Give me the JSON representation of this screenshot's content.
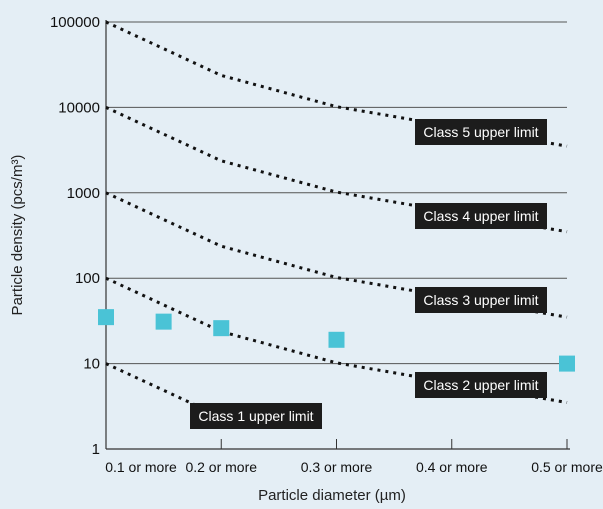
{
  "chart_data": {
    "type": "scatter",
    "xlabel": "Particle diameter (µm)",
    "ylabel": "Particle density (pcs/m³)",
    "y_scale": "log",
    "ylim": [
      1,
      100000
    ],
    "xlim": [
      0.1,
      0.5
    ],
    "x_tick_labels": [
      "0.1 or more",
      "0.2 or more",
      "0.3 or more",
      "0.4 or more",
      "0.5 or more"
    ],
    "y_tick_labels": [
      "1",
      "10",
      "100",
      "1000",
      "10000",
      "100000"
    ],
    "grid": "horizontal",
    "colors": {
      "background": "#e4eef5",
      "limit_line": "#111111",
      "label_box": "#1c1c1c",
      "label_text": "#ffffff",
      "marker": "#4ac3d6"
    },
    "limit_series": [
      {
        "label": "Class 1 upper limit",
        "x": [
          0.1,
          0.2
        ],
        "y": [
          10,
          2.37
        ]
      },
      {
        "label": "Class 2 upper limit",
        "x": [
          0.1,
          0.2,
          0.3,
          0.5
        ],
        "y": [
          100,
          23.7,
          10.2,
          3.5
        ]
      },
      {
        "label": "Class 3 upper limit",
        "x": [
          0.1,
          0.2,
          0.3,
          0.5
        ],
        "y": [
          1000,
          237,
          102,
          35
        ]
      },
      {
        "label": "Class 4 upper limit",
        "x": [
          0.1,
          0.2,
          0.3,
          0.5
        ],
        "y": [
          10000,
          2370,
          1020,
          350
        ]
      },
      {
        "label": "Class 5 upper limit",
        "x": [
          0.1,
          0.2,
          0.3,
          0.5
        ],
        "y": [
          100000,
          23700,
          10200,
          3520
        ]
      }
    ],
    "measurements": {
      "x": [
        0.1,
        0.15,
        0.2,
        0.3,
        0.5
      ],
      "y": [
        35,
        31,
        26,
        19,
        10
      ]
    }
  }
}
